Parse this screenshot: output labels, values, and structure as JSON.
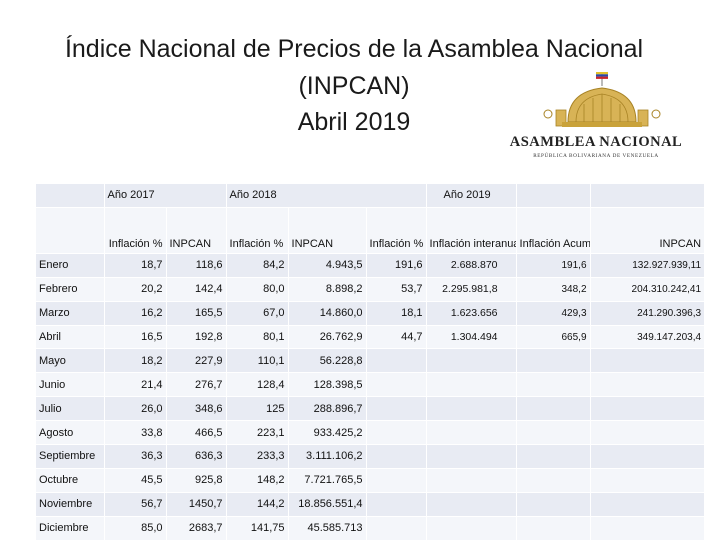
{
  "title": {
    "line1": "Índice Nacional de Precios de la Asamblea Nacional",
    "line2": "(INPCAN)",
    "line3": "Abril 2019"
  },
  "logo": {
    "name": "ASAMBLEA NACIONAL",
    "subtitle": "REPÚBLICA BOLIVARIANA DE VENEZUELA"
  },
  "colors": {
    "row_a": "#e8ebf3",
    "row_b": "#f4f6fa",
    "dome": "#c9a23a"
  },
  "table": {
    "year_headers": [
      "Año 2017",
      "Año 2018",
      "Año 2019"
    ],
    "column_headers": [
      "Inflación %",
      "INPCAN",
      "Inflación %",
      "INPCAN",
      "Inflación %",
      "Inflación interanual %",
      "Inflación Acumulada%",
      "INPCAN"
    ],
    "rows": [
      {
        "month": "Enero",
        "cells": [
          "18,7",
          "118,6",
          "84,2",
          "4.943,5",
          "191,6",
          "2.688.870",
          "191,6",
          "132.927.939,11"
        ]
      },
      {
        "month": "Febrero",
        "cells": [
          "20,2",
          "142,4",
          "80,0",
          "8.898,2",
          "53,7",
          "2.295.981,8",
          "348,2",
          "204.310.242,41"
        ]
      },
      {
        "month": "Marzo",
        "cells": [
          "16,2",
          "165,5",
          "67,0",
          "14.860,0",
          "18,1",
          "1.623.656",
          "429,3",
          "241.290.396,3"
        ]
      },
      {
        "month": "Abril",
        "cells": [
          "16,5",
          "192,8",
          "80,1",
          "26.762,9",
          "44,7",
          "1.304.494",
          "665,9",
          "349.147.203,4"
        ]
      },
      {
        "month": "Mayo",
        "cells": [
          "18,2",
          "227,9",
          "110,1",
          "56.228,8",
          "",
          "",
          "",
          ""
        ]
      },
      {
        "month": "Junio",
        "cells": [
          "21,4",
          "276,7",
          "128,4",
          "128.398,5",
          "",
          "",
          "",
          ""
        ]
      },
      {
        "month": "Julio",
        "cells": [
          "26,0",
          "348,6",
          "125",
          "288.896,7",
          "",
          "",
          "",
          ""
        ]
      },
      {
        "month": "Agosto",
        "cells": [
          "33,8",
          "466,5",
          "223,1",
          "933.425,2",
          "",
          "",
          "",
          ""
        ]
      },
      {
        "month": "Septiembre",
        "cells": [
          "36,3",
          "636,3",
          "233,3",
          "3.111.106,2",
          "",
          "",
          "",
          ""
        ]
      },
      {
        "month": "Octubre",
        "cells": [
          "45,5",
          "925,8",
          "148,2",
          "7.721.765,5",
          "",
          "",
          "",
          ""
        ]
      },
      {
        "month": "Noviembre",
        "cells": [
          "56,7",
          "1450,7",
          "144,2",
          "18.856.551,4",
          "",
          "",
          "",
          ""
        ]
      },
      {
        "month": "Diciembre",
        "cells": [
          "85,0",
          "2683,7",
          "141,75",
          "45.585.713",
          "",
          "",
          "",
          ""
        ]
      }
    ]
  }
}
